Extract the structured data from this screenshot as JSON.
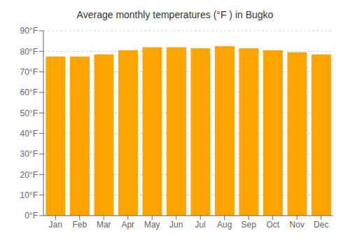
{
  "chart_data": {
    "type": "bar",
    "title": "Average monthly temperatures (°F ) in Bugko",
    "categories": [
      "Jan",
      "Feb",
      "Mar",
      "Apr",
      "May",
      "Jun",
      "Jul",
      "Aug",
      "Sep",
      "Oct",
      "Nov",
      "Dec"
    ],
    "values": [
      77.5,
      77.5,
      78.5,
      80.5,
      82.0,
      82.0,
      81.5,
      82.5,
      81.5,
      80.5,
      79.5,
      78.5
    ],
    "color": "#FFA500",
    "ylim": [
      0,
      90
    ],
    "yticks": [
      {
        "value": 0,
        "label": "0°F"
      },
      {
        "value": 10,
        "label": "10°F"
      },
      {
        "value": 20,
        "label": "20°F"
      },
      {
        "value": 30,
        "label": "30°F"
      },
      {
        "value": 40,
        "label": "40°F"
      },
      {
        "value": 50,
        "label": "50°F"
      },
      {
        "value": 60,
        "label": "60°F"
      },
      {
        "value": 70,
        "label": "70°F"
      },
      {
        "value": 80,
        "label": "80°F"
      },
      {
        "value": 90,
        "label": "90°F"
      }
    ],
    "grid": true
  }
}
